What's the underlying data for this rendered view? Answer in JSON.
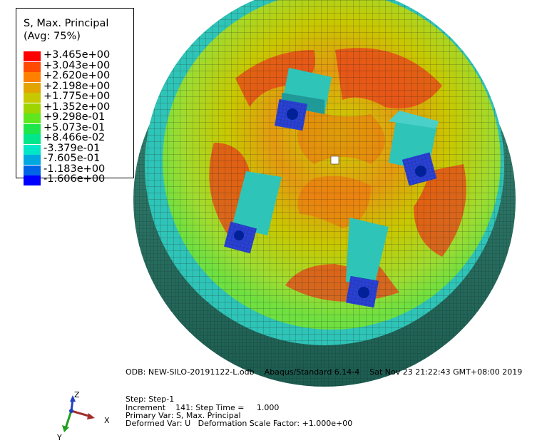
{
  "legend": {
    "title_line1": "S, Max. Principal",
    "title_line2": "(Avg: 75%)",
    "entries": [
      {
        "label": "+3.465e+00",
        "color": "#ff0000"
      },
      {
        "label": "+3.043e+00",
        "color": "#ff4a00"
      },
      {
        "label": "+2.620e+00",
        "color": "#ff8000"
      },
      {
        "label": "+2.198e+00",
        "color": "#e2a400"
      },
      {
        "label": "+1.775e+00",
        "color": "#c8c800"
      },
      {
        "label": "+1.352e+00",
        "color": "#9ed400"
      },
      {
        "label": "+9.298e-01",
        "color": "#5ee61e"
      },
      {
        "label": "+5.073e-01",
        "color": "#1ee64a"
      },
      {
        "label": "+8.466e-02",
        "color": "#00e68c"
      },
      {
        "label": "-3.379e-01",
        "color": "#00e6c8"
      },
      {
        "label": "-7.605e-01",
        "color": "#00a8e0"
      },
      {
        "label": "-1.183e+00",
        "color": "#0064e6"
      },
      {
        "label": "-1.606e+00",
        "color": "#0000ff"
      }
    ]
  },
  "info": {
    "odb": "ODB: NEW-SILO-20191122-L.odb    Abaqus/Standard 6.14-4    Sat Nov 23 21:22:43 GMT+08:00 2019",
    "step": "Step: Step-1",
    "increment": "Increment    141: Step Time =     1.000",
    "primary": "Primary Var: S, Max. Principal",
    "deformed": "Deformed Var: U   Deformation Scale Factor: +1.000e+00"
  },
  "triad": {
    "x": "X",
    "y": "Y",
    "z": "Z"
  },
  "colors": {
    "shell": "#2a7a6a",
    "rim": "#2fc4b8",
    "plate_edge": "#f0d000",
    "plate_mid": "#9edc30",
    "high": "#f04010"
  }
}
